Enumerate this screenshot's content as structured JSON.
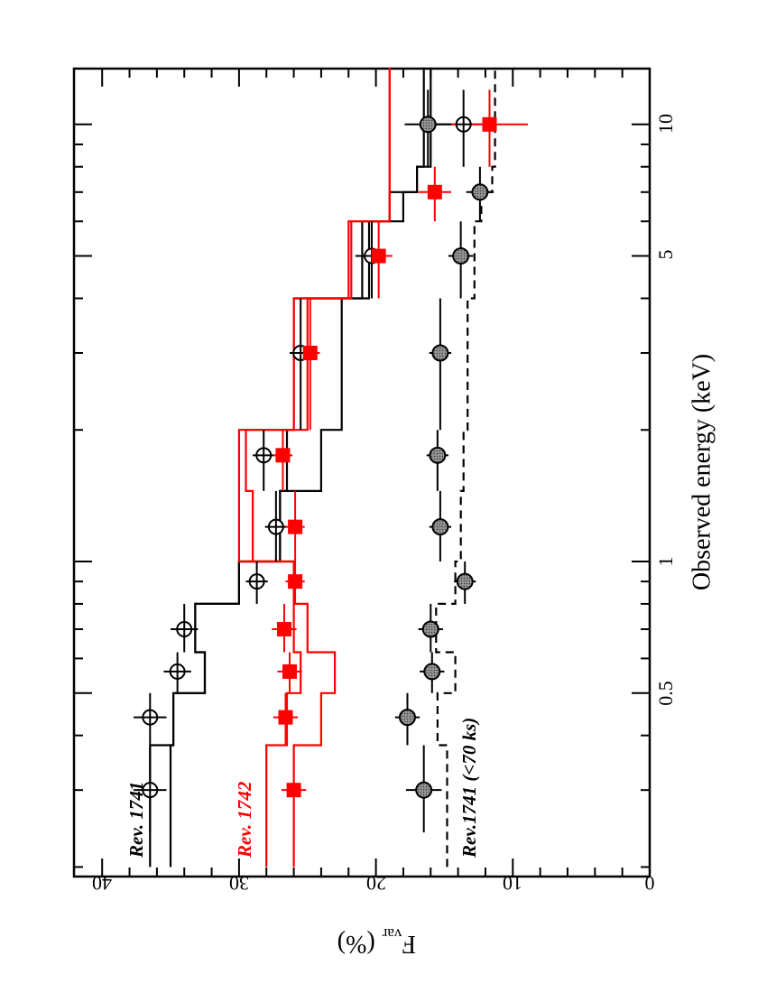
{
  "chart_data": {
    "type": "scatter",
    "orientation": "rotated 90 degrees clockwise (x axis runs top-to-bottom along the right side, y axis runs right-to-left along the bottom)",
    "xlabel": "Observed energy (keV)",
    "ylabel": "F",
    "ylabel_subscript": "var",
    "ylabel_unit": "(%)",
    "x_scale": "log",
    "xlim": [
      0.2,
      15
    ],
    "ylim": [
      0,
      40
    ],
    "x_tick_labels": [
      "0.5",
      "1",
      "5",
      "10"
    ],
    "x_ticks": [
      0.5,
      1,
      5,
      10
    ],
    "y_tick_labels": [
      "0",
      "10",
      "20",
      "30",
      "40"
    ],
    "y_ticks": [
      0,
      10,
      20,
      30,
      40
    ],
    "grid": false,
    "series": [
      {
        "name": "Rev. 1741",
        "color": "#000000",
        "marker": "open-circle-cross",
        "points": [
          {
            "x": 0.3,
            "y": 36.5,
            "xerr": [
              0.24,
              0.38
            ],
            "yerr": 1.2
          },
          {
            "x": 0.44,
            "y": 36.5,
            "xerr": [
              0.38,
              0.5
            ],
            "yerr": 1.2
          },
          {
            "x": 0.56,
            "y": 34.5,
            "xerr": [
              0.5,
              0.62
            ],
            "yerr": 1.0
          },
          {
            "x": 0.7,
            "y": 34.0,
            "xerr": [
              0.62,
              0.8
            ],
            "yerr": 1.0
          },
          {
            "x": 0.9,
            "y": 28.7,
            "xerr": [
              0.8,
              1.0
            ],
            "yerr": 0.8
          },
          {
            "x": 1.2,
            "y": 27.3,
            "xerr": [
              1.0,
              1.45
            ],
            "yerr": 0.8
          },
          {
            "x": 1.75,
            "y": 28.2,
            "xerr": [
              1.45,
              2.0
            ],
            "yerr": 0.8
          },
          {
            "x": 3.0,
            "y": 25.5,
            "xerr": [
              2.0,
              4.0
            ],
            "yerr": 0.8
          },
          {
            "x": 5.0,
            "y": 20.3,
            "xerr": [
              4.0,
              6.0
            ],
            "yerr": 1.2
          },
          {
            "x": 10.0,
            "y": 13.6,
            "xerr": [
              8.0,
              12.0
            ],
            "yerr": 2.4
          }
        ]
      },
      {
        "name": "Rev. 1742",
        "color": "#ff0000",
        "marker": "filled-square",
        "points": [
          {
            "x": 0.3,
            "y": 26.0,
            "xerr": [
              0.24,
              0.38
            ],
            "yerr": 0.9
          },
          {
            "x": 0.44,
            "y": 26.6,
            "xerr": [
              0.38,
              0.5
            ],
            "yerr": 0.9
          },
          {
            "x": 0.56,
            "y": 26.3,
            "xerr": [
              0.5,
              0.62
            ],
            "yerr": 0.9
          },
          {
            "x": 0.7,
            "y": 26.7,
            "xerr": [
              0.62,
              0.8
            ],
            "yerr": 0.9
          },
          {
            "x": 0.9,
            "y": 25.9,
            "xerr": [
              0.8,
              1.0
            ],
            "yerr": 0.7
          },
          {
            "x": 1.2,
            "y": 25.9,
            "xerr": [
              1.0,
              1.45
            ],
            "yerr": 0.7
          },
          {
            "x": 1.75,
            "y": 26.8,
            "xerr": [
              1.45,
              2.0
            ],
            "yerr": 0.7
          },
          {
            "x": 3.0,
            "y": 24.8,
            "xerr": [
              2.0,
              4.0
            ],
            "yerr": 0.7
          },
          {
            "x": 5.0,
            "y": 19.8,
            "xerr": [
              4.0,
              6.0
            ],
            "yerr": 1.0
          },
          {
            "x": 7.0,
            "y": 15.7,
            "xerr": [
              6.0,
              8.0
            ],
            "yerr": 1.2
          },
          {
            "x": 10.0,
            "y": 11.7,
            "xerr": [
              8.0,
              12.0
            ],
            "yerr": 2.8
          }
        ]
      },
      {
        "name": "Rev.1741 (<70 ks)",
        "color": "#000000",
        "marker": "filled-circle-gray",
        "points": [
          {
            "x": 0.3,
            "y": 16.5,
            "xerr": [
              0.24,
              0.38
            ],
            "yerr": 1.3
          },
          {
            "x": 0.44,
            "y": 17.7,
            "xerr": [
              0.38,
              0.5
            ],
            "yerr": 0.9
          },
          {
            "x": 0.56,
            "y": 15.9,
            "xerr": [
              0.5,
              0.62
            ],
            "yerr": 0.9
          },
          {
            "x": 0.7,
            "y": 16.0,
            "xerr": [
              0.62,
              0.8
            ],
            "yerr": 0.9
          },
          {
            "x": 0.9,
            "y": 13.5,
            "xerr": [
              0.8,
              1.0
            ],
            "yerr": 0.8
          },
          {
            "x": 1.2,
            "y": 15.3,
            "xerr": [
              1.0,
              1.45
            ],
            "yerr": 0.8
          },
          {
            "x": 1.75,
            "y": 15.5,
            "xerr": [
              1.45,
              2.0
            ],
            "yerr": 0.8
          },
          {
            "x": 3.0,
            "y": 15.3,
            "xerr": [
              2.0,
              4.0
            ],
            "yerr": 0.8
          },
          {
            "x": 5.0,
            "y": 13.8,
            "xerr": [
              4.0,
              6.0
            ],
            "yerr": 0.9
          },
          {
            "x": 7.0,
            "y": 12.4,
            "xerr": [
              6.0,
              8.0
            ],
            "yerr": 1.0
          },
          {
            "x": 10.0,
            "y": 16.2,
            "xerr": [
              8.0,
              12.0
            ],
            "yerr": 1.7
          }
        ]
      }
    ],
    "models": [
      {
        "name": "Rev. 1741 model upper",
        "color": "#000000",
        "dash": "solid",
        "bins": [
          {
            "x0": 0.2,
            "x1": 0.38,
            "y": 36.5
          },
          {
            "x0": 0.38,
            "x1": 0.5,
            "y": 34.8
          },
          {
            "x0": 0.5,
            "x1": 0.62,
            "y": 32.5
          },
          {
            "x0": 0.62,
            "x1": 0.8,
            "y": 33.2
          },
          {
            "x0": 0.8,
            "x1": 1.0,
            "y": 30.0
          },
          {
            "x0": 1.0,
            "x1": 1.45,
            "y": 27.0
          },
          {
            "x0": 1.45,
            "x1": 2.0,
            "y": 26.5
          },
          {
            "x0": 2.0,
            "x1": 4.0,
            "y": 26.0
          },
          {
            "x0": 4.0,
            "x1": 6.0,
            "y": 21.0
          },
          {
            "x0": 6.0,
            "x1": 7.0,
            "y": 19.0
          },
          {
            "x0": 7.0,
            "x1": 8.0,
            "y": 17.0
          },
          {
            "x0": 8.0,
            "x1": 12.0,
            "y": 16.5
          },
          {
            "x0": 12.0,
            "x1": 13.5,
            "y": 16.5
          }
        ]
      },
      {
        "name": "Rev. 1741 model lower",
        "color": "#000000",
        "dash": "solid",
        "bins": [
          {
            "x0": 0.2,
            "x1": 0.38,
            "y": 35.0
          },
          {
            "x0": 0.38,
            "x1": 0.5,
            "y": 34.8
          },
          {
            "x0": 0.5,
            "x1": 0.62,
            "y": 32.5
          },
          {
            "x0": 0.62,
            "x1": 0.8,
            "y": 33.2
          },
          {
            "x0": 0.8,
            "x1": 1.0,
            "y": 30.0
          },
          {
            "x0": 1.0,
            "x1": 1.45,
            "y": 27.0
          },
          {
            "x0": 1.45,
            "x1": 2.0,
            "y": 24.0
          },
          {
            "x0": 2.0,
            "x1": 4.0,
            "y": 22.5
          },
          {
            "x0": 4.0,
            "x1": 6.0,
            "y": 20.5
          },
          {
            "x0": 6.0,
            "x1": 7.0,
            "y": 18.0
          },
          {
            "x0": 7.0,
            "x1": 8.0,
            "y": 17.0
          },
          {
            "x0": 8.0,
            "x1": 12.0,
            "y": 16.0
          },
          {
            "x0": 12.0,
            "x1": 13.5,
            "y": 16.0
          }
        ]
      },
      {
        "name": "Rev. 1742 model upper",
        "color": "#ff0000",
        "dash": "solid",
        "bins": [
          {
            "x0": 0.2,
            "x1": 0.38,
            "y": 28.0
          },
          {
            "x0": 0.38,
            "x1": 0.5,
            "y": 26.5
          },
          {
            "x0": 0.5,
            "x1": 0.62,
            "y": 25.5
          },
          {
            "x0": 0.62,
            "x1": 0.8,
            "y": 26.0
          },
          {
            "x0": 0.8,
            "x1": 1.0,
            "y": 26.0
          },
          {
            "x0": 1.0,
            "x1": 1.45,
            "y": 30.0
          },
          {
            "x0": 1.45,
            "x1": 2.0,
            "y": 30.0
          },
          {
            "x0": 2.0,
            "x1": 4.0,
            "y": 26.0
          },
          {
            "x0": 4.0,
            "x1": 6.0,
            "y": 22.0
          },
          {
            "x0": 6.0,
            "x1": 12.0,
            "y": 19.0
          },
          {
            "x0": 12.0,
            "x1": 13.5,
            "y": 19.0
          }
        ]
      },
      {
        "name": "Rev. 1742 model lower",
        "color": "#ff0000",
        "dash": "solid",
        "bins": [
          {
            "x0": 0.2,
            "x1": 0.38,
            "y": 26.0
          },
          {
            "x0": 0.38,
            "x1": 0.5,
            "y": 24.0
          },
          {
            "x0": 0.5,
            "x1": 0.62,
            "y": 23.0
          },
          {
            "x0": 0.62,
            "x1": 0.8,
            "y": 25.0
          },
          {
            "x0": 0.8,
            "x1": 1.0,
            "y": 26.0
          },
          {
            "x0": 1.0,
            "x1": 1.45,
            "y": 29.0
          },
          {
            "x0": 1.45,
            "x1": 2.0,
            "y": 29.5
          },
          {
            "x0": 2.0,
            "x1": 4.0,
            "y": 25.0
          },
          {
            "x0": 4.0,
            "x1": 6.0,
            "y": 21.8
          },
          {
            "x0": 6.0,
            "x1": 12.0,
            "y": 19.0
          },
          {
            "x0": 12.0,
            "x1": 13.5,
            "y": 19.0
          }
        ]
      },
      {
        "name": "Rev.1741 (<70 ks) model",
        "color": "#000000",
        "dash": "dashed",
        "bins": [
          {
            "x0": 0.2,
            "x1": 0.38,
            "y": 14.8
          },
          {
            "x0": 0.38,
            "x1": 0.5,
            "y": 15.5
          },
          {
            "x0": 0.5,
            "x1": 0.62,
            "y": 14.2
          },
          {
            "x0": 0.62,
            "x1": 0.8,
            "y": 15.6
          },
          {
            "x0": 0.8,
            "x1": 1.0,
            "y": 14.2
          },
          {
            "x0": 1.0,
            "x1": 1.45,
            "y": 13.8
          },
          {
            "x0": 1.45,
            "x1": 2.0,
            "y": 13.6
          },
          {
            "x0": 2.0,
            "x1": 4.0,
            "y": 13.3
          },
          {
            "x0": 4.0,
            "x1": 6.0,
            "y": 12.8
          },
          {
            "x0": 6.0,
            "x1": 7.0,
            "y": 12.3
          },
          {
            "x0": 7.0,
            "x1": 8.0,
            "y": 11.5
          },
          {
            "x0": 8.0,
            "x1": 12.0,
            "y": 11.3
          },
          {
            "x0": 12.0,
            "x1": 13.5,
            "y": 11.3
          }
        ]
      }
    ],
    "annotations": [
      {
        "text": "Rev. 1741",
        "color": "#000000"
      },
      {
        "text": "Rev. 1742",
        "color": "#ff0000"
      },
      {
        "text": "Rev.1741 (<70 ks)",
        "color": "#000000"
      }
    ]
  }
}
